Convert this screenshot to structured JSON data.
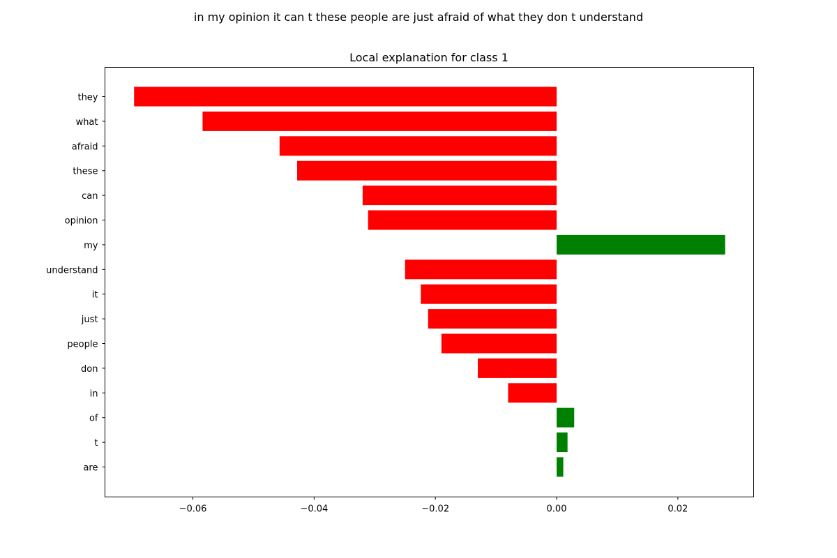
{
  "figure": {
    "suptitle": "in my opinion it can t these people are just afraid of what they don t understand"
  },
  "chart_data": {
    "type": "bar",
    "orientation": "horizontal",
    "title": "Local explanation for class 1",
    "xlabel": "",
    "ylabel": "",
    "xlim": [
      -0.0745,
      0.0325
    ],
    "xticks": [
      -0.06,
      -0.04,
      -0.02,
      0.0,
      0.02
    ],
    "xtick_labels": [
      "−0.06",
      "−0.04",
      "−0.02",
      "0.00",
      "0.02"
    ],
    "grid": false,
    "legend": "none",
    "colors": {
      "negative": "#ff0000",
      "positive": "#008000"
    },
    "categories": [
      "they",
      "what",
      "afraid",
      "these",
      "can",
      "opinion",
      "my",
      "understand",
      "it",
      "just",
      "people",
      "don",
      "in",
      "of",
      "t",
      "are"
    ],
    "values": [
      -0.0697,
      -0.0584,
      -0.0457,
      -0.0428,
      -0.032,
      -0.0311,
      0.0278,
      -0.025,
      -0.0224,
      -0.0212,
      -0.019,
      -0.013,
      -0.008,
      0.0029,
      0.0018,
      0.0011
    ]
  }
}
